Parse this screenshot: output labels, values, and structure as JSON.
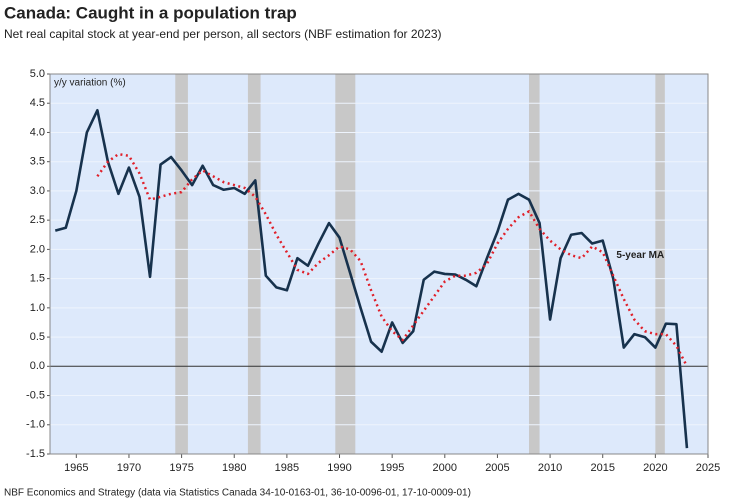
{
  "chart_data": {
    "type": "line",
    "title": "Canada: Caught in a population trap",
    "subtitle": "Net real capital stock at year-end per person, all sectors (NBF estimation for 2023)",
    "y_label": "y/y variation (%)",
    "source": "NBF Economics and Strategy (data via Statistics Canada 34-10-0163-01, 36-10-0096-01, 17-10-0009-01)",
    "x": [
      1963,
      1964,
      1965,
      1966,
      1967,
      1968,
      1969,
      1970,
      1971,
      1972,
      1973,
      1974,
      1975,
      1976,
      1977,
      1978,
      1979,
      1980,
      1981,
      1982,
      1983,
      1984,
      1985,
      1986,
      1987,
      1988,
      1989,
      1990,
      1991,
      1992,
      1993,
      1994,
      1995,
      1996,
      1997,
      1998,
      1999,
      2000,
      2001,
      2002,
      2003,
      2004,
      2005,
      2006,
      2007,
      2008,
      2009,
      2010,
      2011,
      2012,
      2013,
      2014,
      2015,
      2016,
      2017,
      2018,
      2019,
      2020,
      2021,
      2022,
      2023
    ],
    "series": [
      {
        "color": "#17324d",
        "style": "solid",
        "values": [
          2.32,
          2.37,
          3.0,
          4.0,
          4.38,
          3.5,
          2.95,
          3.4,
          2.9,
          1.53,
          3.45,
          3.58,
          3.35,
          3.1,
          3.43,
          3.1,
          3.02,
          3.05,
          2.95,
          3.18,
          1.55,
          1.35,
          1.3,
          1.85,
          1.72,
          2.1,
          2.45,
          2.2,
          1.6,
          1.0,
          0.42,
          0.25,
          0.75,
          0.4,
          0.6,
          1.48,
          1.62,
          1.58,
          1.57,
          1.48,
          1.37,
          1.85,
          2.3,
          2.85,
          2.95,
          2.85,
          2.45,
          0.8,
          1.85,
          2.25,
          2.28,
          2.1,
          2.15,
          1.5,
          0.32,
          0.55,
          0.5,
          0.32,
          0.73,
          0.72,
          -1.4
        ]
      },
      {
        "name": "5-year MA",
        "color": "#e0202a",
        "style": "dotted",
        "values": [
          null,
          null,
          null,
          null,
          3.25,
          3.5,
          3.63,
          3.6,
          3.3,
          2.85,
          2.9,
          2.95,
          2.98,
          3.2,
          3.35,
          3.25,
          3.15,
          3.1,
          3.05,
          2.9,
          2.6,
          2.25,
          1.95,
          1.65,
          1.58,
          1.77,
          1.9,
          2.05,
          2.0,
          1.8,
          1.3,
          0.85,
          0.6,
          0.45,
          0.7,
          0.95,
          1.2,
          1.45,
          1.55,
          1.55,
          1.6,
          1.75,
          2.1,
          2.35,
          2.55,
          2.65,
          2.35,
          2.15,
          2.0,
          1.9,
          1.85,
          2.05,
          1.95,
          1.55,
          1.15,
          0.8,
          0.6,
          0.55,
          0.55,
          0.35,
          0.0
        ]
      }
    ],
    "shaded_periods": [
      [
        1974.4,
        1975.6
      ],
      [
        1981.3,
        1982.5
      ],
      [
        1989.6,
        1991.5
      ],
      [
        2008.0,
        2009.0
      ],
      [
        2020.0,
        2020.9
      ]
    ],
    "shade_color": "#c8c8c8",
    "xlim": [
      1962.5,
      2025
    ],
    "xticks": [
      1965,
      1970,
      1975,
      1980,
      1985,
      1990,
      1995,
      2000,
      2005,
      2010,
      2015,
      2020,
      2025
    ],
    "ylim": [
      -1.5,
      5.0
    ],
    "yticks": [
      {
        "value": 5.0,
        "label": "5.0"
      },
      {
        "value": 4.5,
        "label": "4.5"
      },
      {
        "value": 4.0,
        "label": "4.0"
      },
      {
        "value": 3.5,
        "label": "3.5"
      },
      {
        "value": 3.0,
        "label": "3.0"
      },
      {
        "value": 2.5,
        "label": "2.5"
      },
      {
        "value": 2.0,
        "label": "2.0"
      },
      {
        "value": 1.5,
        "label": "1.5"
      },
      {
        "value": 1.0,
        "label": "1.0"
      },
      {
        "value": 0.5,
        "label": "0.5"
      },
      {
        "value": 0.0,
        "label": "0.0"
      },
      {
        "value": -0.5,
        "label": "-0.5"
      },
      {
        "value": -1.0,
        "label": "-1.0"
      },
      {
        "value": -1.5,
        "label": "-1.5"
      }
    ],
    "grid": true
  }
}
